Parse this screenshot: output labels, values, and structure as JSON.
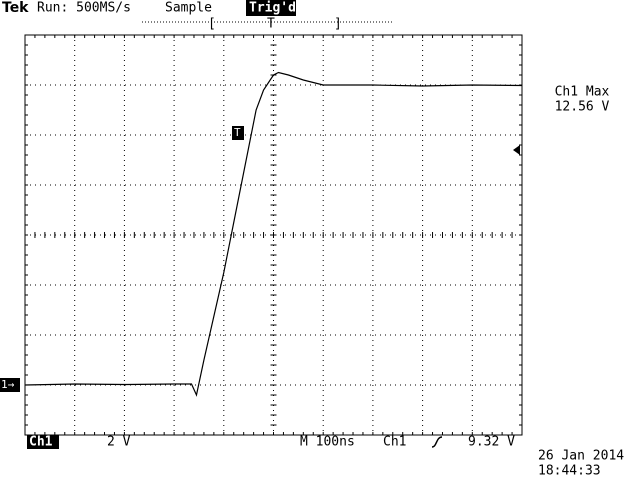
{
  "header": {
    "brand": "Tek",
    "acquisition": "Run: 500MS/s",
    "mode": "Sample",
    "trigger_status": "Trig'd",
    "trigger_position": "T"
  },
  "markers": {
    "channel": "1→",
    "trigger": "T"
  },
  "measurement": {
    "label": "Ch1 Max",
    "value": "12.56 V"
  },
  "footer": {
    "channel": "Ch1",
    "volts_per_div": "2 V",
    "timebase": "M 100ns",
    "trigger_source": "Ch1",
    "trigger_level": "9.32 V",
    "date": "26 Jan 2014",
    "time": "18:44:33"
  },
  "trace": {
    "x": [
      -500,
      -400,
      -300,
      -200,
      -165,
      -155,
      -140,
      -100,
      -60,
      -35,
      -20,
      0,
      10,
      30,
      60,
      100,
      200,
      300,
      400,
      500
    ],
    "values": [
      0,
      0.04,
      0.02,
      0.04,
      0.04,
      -0.4,
      1.0,
      4.5,
      8.5,
      11.0,
      11.8,
      12.4,
      12.5,
      12.4,
      12.2,
      12.0,
      12.0,
      11.96,
      12.0,
      11.98
    ]
  }
}
